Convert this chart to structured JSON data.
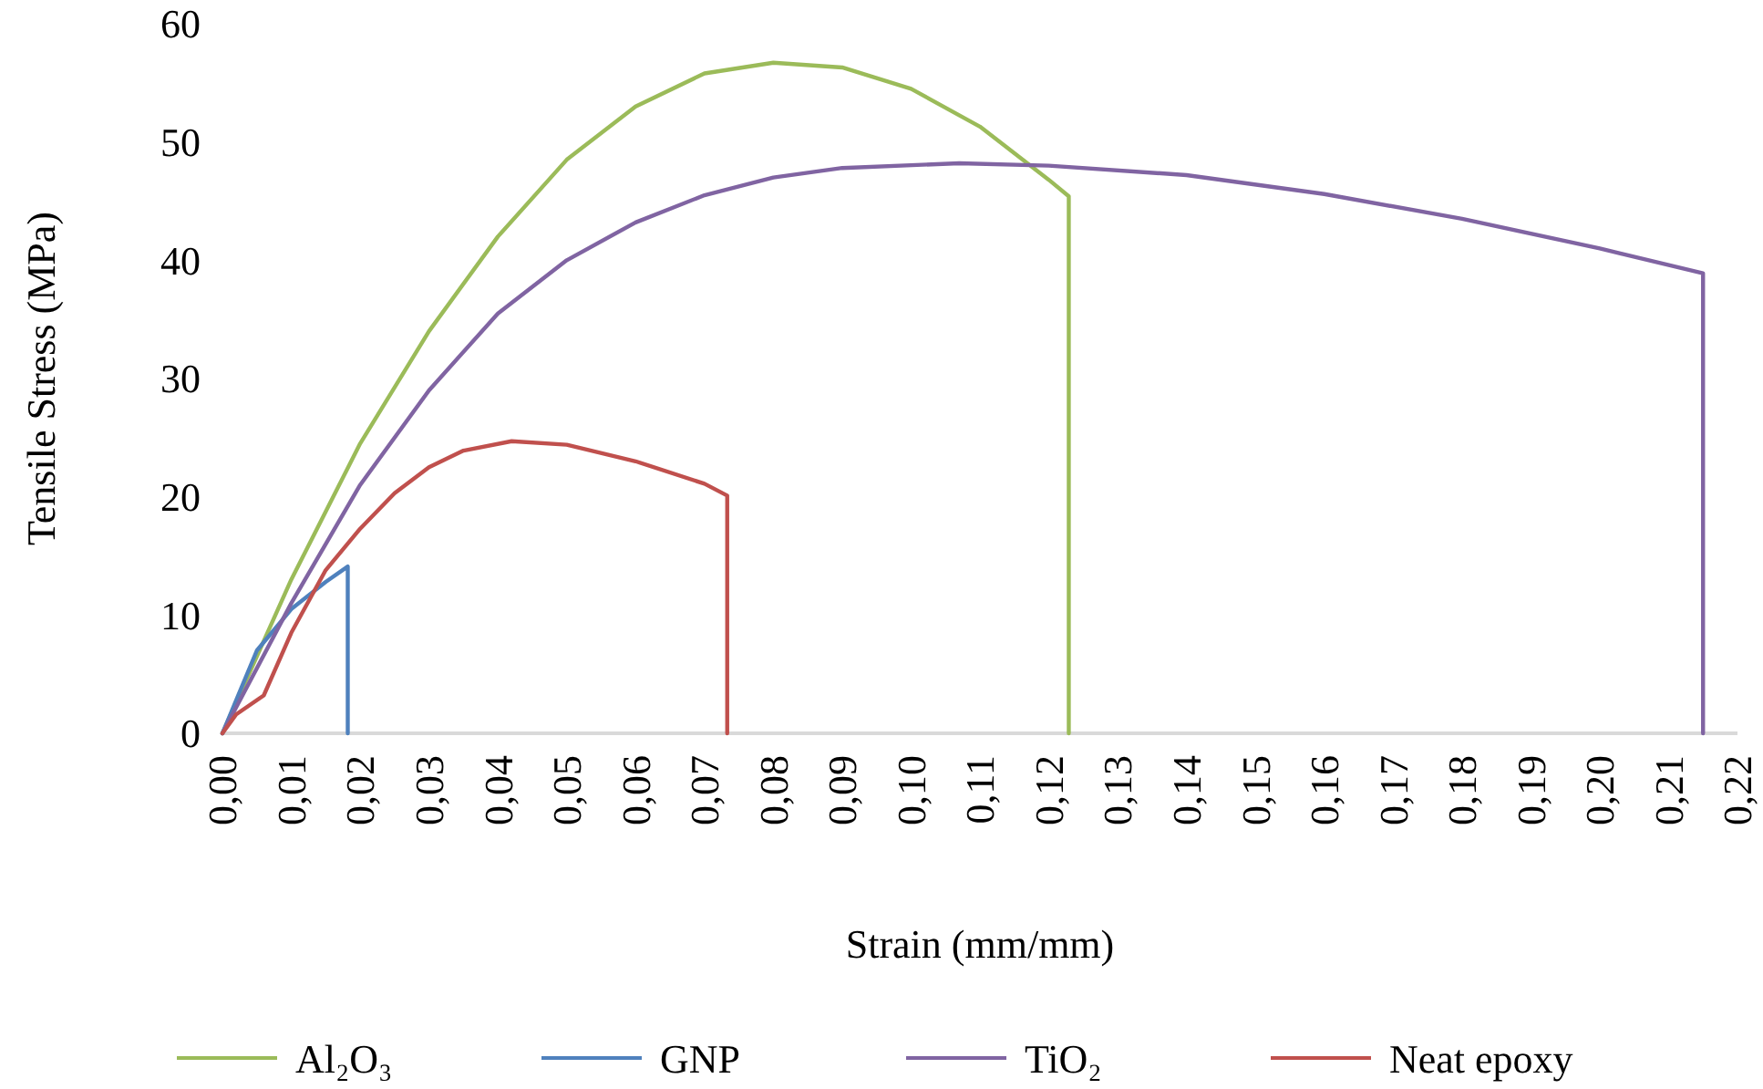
{
  "chart_data": {
    "type": "line",
    "xlabel": "Strain (mm/mm)",
    "ylabel": "Tensile Stress (MPa)",
    "xlim": [
      0,
      0.22
    ],
    "ylim": [
      0,
      60
    ],
    "xticks": [
      {
        "value": 0,
        "label": "0,00"
      },
      {
        "value": 0.01,
        "label": "0,01"
      },
      {
        "value": 0.02,
        "label": "0,02"
      },
      {
        "value": 0.03,
        "label": "0,03"
      },
      {
        "value": 0.04,
        "label": "0,04"
      },
      {
        "value": 0.05,
        "label": "0,05"
      },
      {
        "value": 0.06,
        "label": "0,06"
      },
      {
        "value": 0.07,
        "label": "0,07"
      },
      {
        "value": 0.08,
        "label": "0,08"
      },
      {
        "value": 0.09,
        "label": "0,09"
      },
      {
        "value": 0.1,
        "label": "0,10"
      },
      {
        "value": 0.11,
        "label": "0,11"
      },
      {
        "value": 0.12,
        "label": "0,12"
      },
      {
        "value": 0.13,
        "label": "0,13"
      },
      {
        "value": 0.14,
        "label": "0,14"
      },
      {
        "value": 0.15,
        "label": "0,15"
      },
      {
        "value": 0.16,
        "label": "0,16"
      },
      {
        "value": 0.17,
        "label": "0,17"
      },
      {
        "value": 0.18,
        "label": "0,18"
      },
      {
        "value": 0.19,
        "label": "0,19"
      },
      {
        "value": 0.2,
        "label": "0,20"
      },
      {
        "value": 0.21,
        "label": "0,21"
      },
      {
        "value": 0.22,
        "label": "0,22"
      }
    ],
    "yticks": [
      0,
      10,
      20,
      30,
      40,
      50,
      60
    ],
    "grid": false,
    "legend": "bottom",
    "marker": "none",
    "line_style": "solid",
    "series": [
      {
        "name": "Al₂O₃",
        "color": "#9bbb59",
        "x": [
          0,
          0.01,
          0.02,
          0.03,
          0.04,
          0.05,
          0.06,
          0.07,
          0.08,
          0.09,
          0.1,
          0.11,
          0.12,
          0.1229,
          0.1229
        ],
        "values": [
          0,
          13,
          24.5,
          34,
          42,
          48.5,
          53,
          55.8,
          56.7,
          56.3,
          54.5,
          51.3,
          46.8,
          45.4,
          0
        ]
      },
      {
        "name": "GNP",
        "color": "#4f81bd",
        "x": [
          0,
          0.005,
          0.01,
          0.015,
          0.0182,
          0.0182
        ],
        "values": [
          0,
          7,
          10.5,
          12.8,
          14.1,
          0
        ]
      },
      {
        "name": "TiO₂",
        "color": "#8064a2",
        "x": [
          0,
          0.01,
          0.02,
          0.03,
          0.04,
          0.05,
          0.06,
          0.07,
          0.08,
          0.09,
          0.107,
          0.12,
          0.14,
          0.16,
          0.18,
          0.2,
          0.215,
          0.215
        ],
        "values": [
          0,
          11,
          21,
          29,
          35.5,
          40,
          43.2,
          45.5,
          47,
          47.8,
          48.2,
          48,
          47.2,
          45.6,
          43.5,
          41,
          38.9,
          0
        ]
      },
      {
        "name": "Neat epoxy",
        "color": "#c0504d",
        "x": [
          0,
          0.002,
          0.006,
          0.01,
          0.015,
          0.02,
          0.025,
          0.03,
          0.035,
          0.042,
          0.05,
          0.06,
          0.07,
          0.0733,
          0.0733
        ],
        "values": [
          0,
          1.6,
          3.2,
          8.5,
          13.8,
          17.3,
          20.3,
          22.5,
          23.9,
          24.7,
          24.4,
          23,
          21.1,
          20.1,
          0
        ]
      }
    ]
  }
}
